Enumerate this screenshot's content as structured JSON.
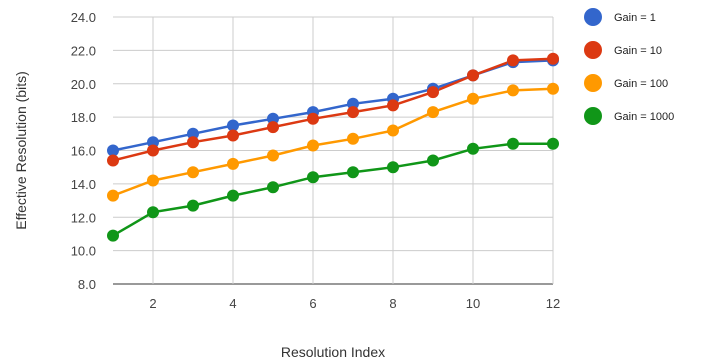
{
  "chart_data": {
    "type": "line",
    "xlabel": "Resolution Index",
    "ylabel": "Effective Resolution (bits)",
    "xlim": [
      1,
      12
    ],
    "ylim": [
      8.0,
      24.0
    ],
    "x_ticks": [
      2,
      4,
      6,
      8,
      10,
      12
    ],
    "y_ticks": [
      8.0,
      10.0,
      12.0,
      14.0,
      16.0,
      18.0,
      20.0,
      22.0,
      24.0
    ],
    "grid": true,
    "legend_position": "right",
    "x": [
      1,
      2,
      3,
      4,
      5,
      6,
      7,
      8,
      9,
      10,
      11,
      12
    ],
    "series": [
      {
        "name": "Gain = 1",
        "color": "#3366cc",
        "values": [
          16.0,
          16.5,
          17.0,
          17.5,
          17.9,
          18.3,
          18.8,
          19.1,
          19.7,
          20.5,
          21.3,
          21.4
        ]
      },
      {
        "name": "Gain = 10",
        "color": "#dc3912",
        "values": [
          15.4,
          16.0,
          16.5,
          16.9,
          17.4,
          17.9,
          18.3,
          18.7,
          19.5,
          20.5,
          21.4,
          21.5
        ]
      },
      {
        "name": "Gain = 100",
        "color": "#ff9900",
        "values": [
          13.3,
          14.2,
          14.7,
          15.2,
          15.7,
          16.3,
          16.7,
          17.2,
          18.3,
          19.1,
          19.6,
          19.7
        ]
      },
      {
        "name": "Gain = 1000",
        "color": "#109618",
        "values": [
          10.9,
          12.3,
          12.7,
          13.3,
          13.8,
          14.4,
          14.7,
          15.0,
          15.4,
          16.1,
          16.4,
          16.4
        ]
      }
    ]
  }
}
